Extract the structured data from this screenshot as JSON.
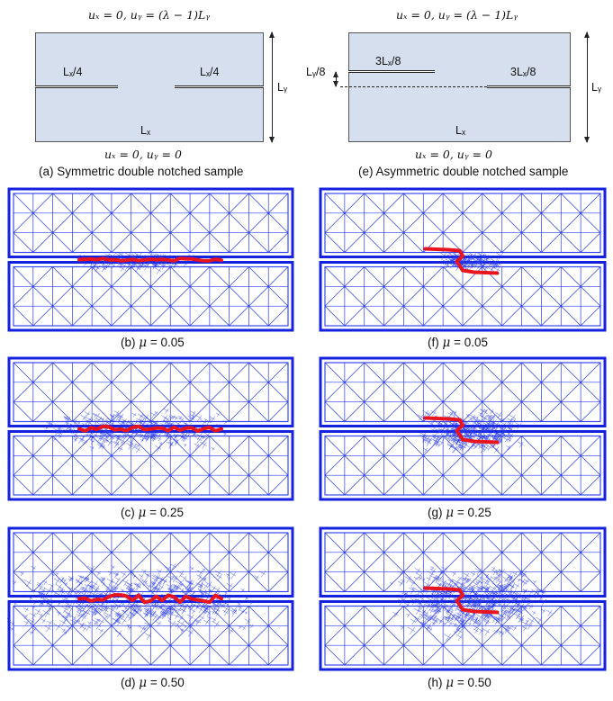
{
  "schematics": {
    "symmetric": {
      "top_bc": "uₓ = 0, uᵧ = (λ − 1)Lᵧ",
      "bottom_bc": "uₓ = 0, uᵧ = 0",
      "left_notch_label": "Lₓ/4",
      "right_notch_label": "Lₓ/4",
      "height_label": "Lᵧ",
      "width_label": "Lₓ",
      "caption": "(a) Symmetric double notched sample"
    },
    "asymmetric": {
      "top_bc": "uₓ = 0, uᵧ = (λ − 1)Lᵧ",
      "bottom_bc": "uₓ = 0, uᵧ = 0",
      "left_notch_label": "3Lₓ/8",
      "right_notch_label": "3Lₓ/8",
      "offset_label": "Lᵧ/8",
      "height_label": "Lᵧ",
      "width_label": "Lₓ",
      "caption": "(e) Asymmetric double notched sample"
    }
  },
  "mesh_panels": [
    {
      "caption_prefix": "(b)",
      "mu_symbol": "μ",
      "mu_value": "= 0.05",
      "refinement": 0.05
    },
    {
      "caption_prefix": "(c)",
      "mu_symbol": "μ",
      "mu_value": "= 0.25",
      "refinement": 0.25
    },
    {
      "caption_prefix": "(d)",
      "mu_symbol": "μ",
      "mu_value": "= 0.50",
      "refinement": 0.5
    },
    {
      "caption_prefix": "(f)",
      "mu_symbol": "μ",
      "mu_value": "= 0.05",
      "refinement": 0.05
    },
    {
      "caption_prefix": "(g)",
      "mu_symbol": "μ",
      "mu_value": "= 0.25",
      "refinement": 0.25
    },
    {
      "caption_prefix": "(h)",
      "mu_symbol": "μ",
      "mu_value": "= 0.50",
      "refinement": 0.5
    }
  ],
  "colors": {
    "mesh_line": "#2a3cf0",
    "mesh_border": "#1422e0",
    "crack": "#e8141e",
    "specimen_fill": "#d6dfee"
  }
}
